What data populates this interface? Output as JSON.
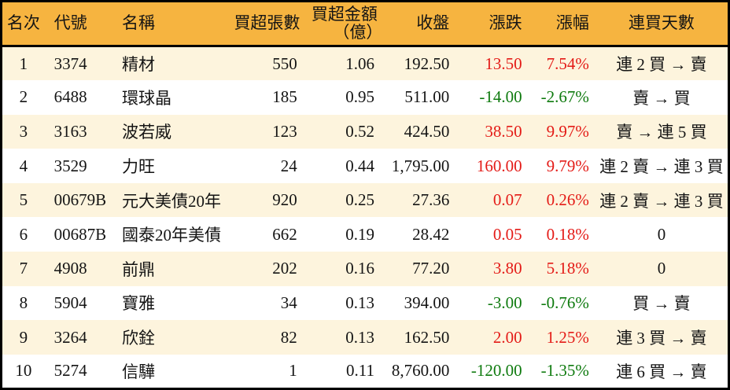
{
  "colors": {
    "header-bg": "#f6b440",
    "row-alt": "#fdf4dd",
    "border": "#000000",
    "text": "#141414",
    "pos": "#e41b17",
    "neg": "#0e7a0e"
  },
  "chart_data": {
    "type": "table",
    "title": "",
    "columns": [
      {
        "key": "rank",
        "label": "名次"
      },
      {
        "key": "code",
        "label": "代號"
      },
      {
        "key": "name",
        "label": "名稱"
      },
      {
        "key": "volume",
        "label": "買超張數"
      },
      {
        "key": "amount",
        "label": "買超金額",
        "sublabel": "（億）"
      },
      {
        "key": "close",
        "label": "收盤"
      },
      {
        "key": "change",
        "label": "漲跌"
      },
      {
        "key": "change_pct",
        "label": "漲幅"
      },
      {
        "key": "streak",
        "label": "連買天數"
      }
    ],
    "rows": [
      {
        "rank": "1",
        "code": "3374",
        "name": "精材",
        "volume": "550",
        "amount": "1.06",
        "close": "192.50",
        "change": "13.50",
        "change_pct": "7.54%",
        "streak": "連 2 買 → 賣"
      },
      {
        "rank": "2",
        "code": "6488",
        "name": "環球晶",
        "volume": "185",
        "amount": "0.95",
        "close": "511.00",
        "change": "-14.00",
        "change_pct": "-2.67%",
        "streak": "賣 → 買"
      },
      {
        "rank": "3",
        "code": "3163",
        "name": "波若威",
        "volume": "123",
        "amount": "0.52",
        "close": "424.50",
        "change": "38.50",
        "change_pct": "9.97%",
        "streak": "賣 → 連 5 買"
      },
      {
        "rank": "4",
        "code": "3529",
        "name": "力旺",
        "volume": "24",
        "amount": "0.44",
        "close": "1,795.00",
        "change": "160.00",
        "change_pct": "9.79%",
        "streak": "連 2 賣 → 連 3 買"
      },
      {
        "rank": "5",
        "code": "00679B",
        "name": "元大美債20年",
        "volume": "920",
        "amount": "0.25",
        "close": "27.36",
        "change": "0.07",
        "change_pct": "0.26%",
        "streak": "連 2 賣 → 連 3 買"
      },
      {
        "rank": "6",
        "code": "00687B",
        "name": "國泰20年美債",
        "volume": "662",
        "amount": "0.19",
        "close": "28.42",
        "change": "0.05",
        "change_pct": "0.18%",
        "streak": "0"
      },
      {
        "rank": "7",
        "code": "4908",
        "name": "前鼎",
        "volume": "202",
        "amount": "0.16",
        "close": "77.20",
        "change": "3.80",
        "change_pct": "5.18%",
        "streak": "0"
      },
      {
        "rank": "8",
        "code": "5904",
        "name": "寶雅",
        "volume": "34",
        "amount": "0.13",
        "close": "394.00",
        "change": "-3.00",
        "change_pct": "-0.76%",
        "streak": "買 → 賣"
      },
      {
        "rank": "9",
        "code": "3264",
        "name": "欣銓",
        "volume": "82",
        "amount": "0.13",
        "close": "162.50",
        "change": "2.00",
        "change_pct": "1.25%",
        "streak": "連 3 買 → 賣"
      },
      {
        "rank": "10",
        "code": "5274",
        "name": "信驊",
        "volume": "1",
        "amount": "0.11",
        "close": "8,760.00",
        "change": "-120.00",
        "change_pct": "-1.35%",
        "streak": "連 6 買 → 賣"
      }
    ]
  }
}
